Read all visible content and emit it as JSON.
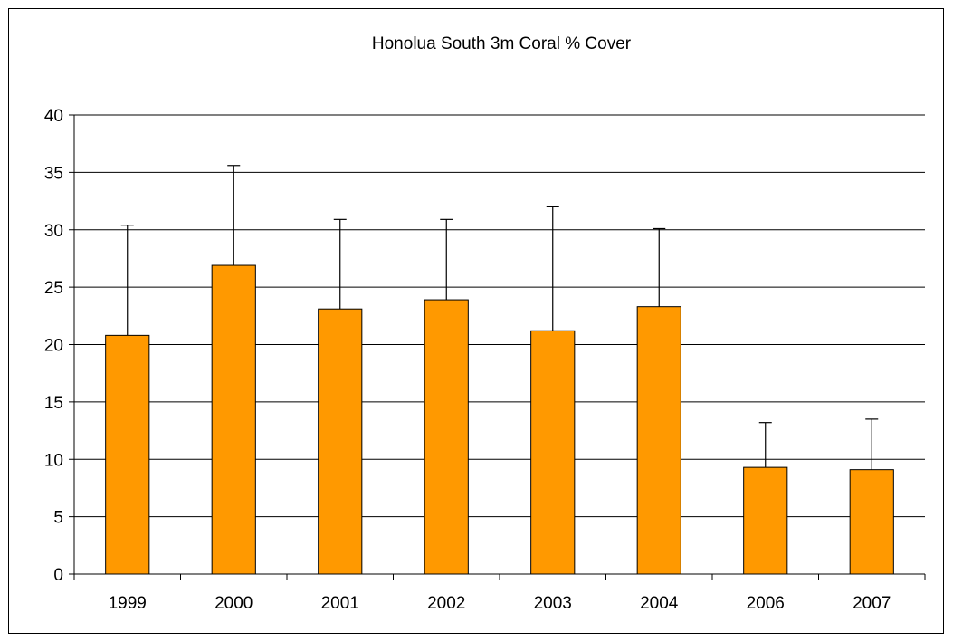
{
  "chart_data": {
    "type": "bar",
    "title": "Honolua South 3m Coral % Cover",
    "xlabel": "",
    "ylabel": "",
    "categories": [
      "1999",
      "2000",
      "2001",
      "2002",
      "2003",
      "2004",
      "2006",
      "2007"
    ],
    "series": [
      {
        "values": [
          20.8,
          26.9,
          23.1,
          23.9,
          21.2,
          23.3,
          9.3,
          9.1
        ],
        "error_upper": [
          30.4,
          35.6,
          30.9,
          30.9,
          32.0,
          30.1,
          13.2,
          13.5
        ],
        "color": "#FF9900"
      }
    ],
    "ylim": [
      0,
      40
    ],
    "yticks": [
      0,
      5,
      10,
      15,
      20,
      25,
      30,
      35,
      40
    ],
    "grid": true,
    "legend": "none"
  }
}
